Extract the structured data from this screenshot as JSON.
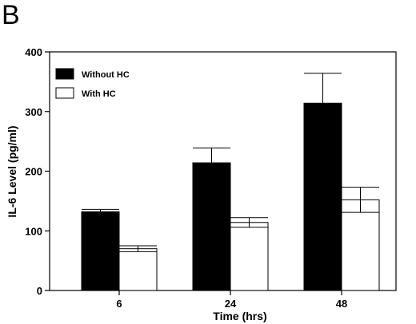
{
  "panel_label": "B",
  "chart_data": {
    "type": "bar",
    "title": "",
    "xlabel": "Time (hrs)",
    "ylabel": "IL-6 Level (pg/ml)",
    "ylim": [
      0,
      400
    ],
    "yticks": [
      "0",
      "100",
      "200",
      "300",
      "400"
    ],
    "categories": [
      "6",
      "24",
      "48"
    ],
    "grid": false,
    "legend_position": "top-left",
    "series": [
      {
        "name": "Without HC",
        "fill": "#000000",
        "values": [
          132,
          214,
          314
        ],
        "error": [
          4,
          25,
          50
        ]
      },
      {
        "name": "With HC",
        "fill": "#ffffff",
        "values": [
          70,
          114,
          152
        ],
        "error": [
          5,
          8,
          21
        ]
      }
    ]
  }
}
